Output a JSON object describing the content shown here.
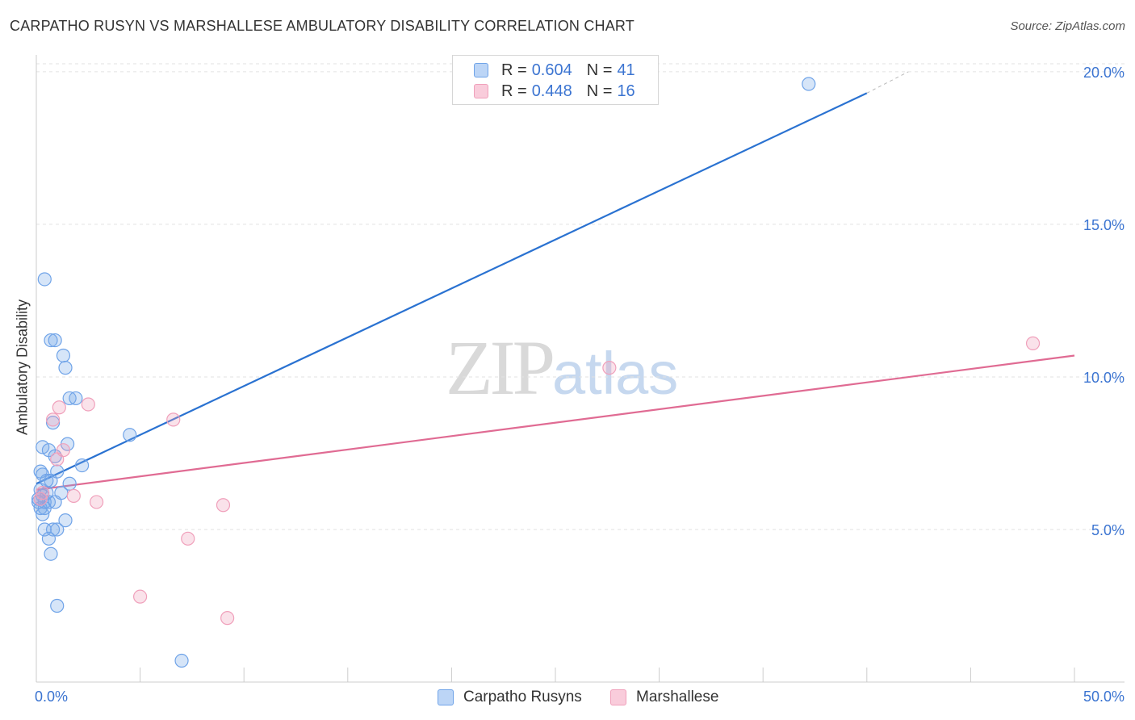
{
  "chart_data": {
    "type": "scatter",
    "title": "CARPATHO RUSYN VS MARSHALLESE AMBULATORY DISABILITY CORRELATION CHART",
    "source": "Source: ZipAtlas.com",
    "xlabel": "",
    "ylabel": "Ambulatory Disability",
    "xlim": [
      0,
      50
    ],
    "ylim": [
      0,
      20.5
    ],
    "x_tick_labels": [
      "0.0%",
      "50.0%"
    ],
    "y_ticks": [
      5,
      10,
      15,
      20
    ],
    "y_tick_labels": [
      "5.0%",
      "10.0%",
      "15.0%",
      "20.0%"
    ],
    "grid": true,
    "watermark": {
      "left": "ZIP",
      "right": "atlas"
    },
    "legend": {
      "entries": [
        {
          "r_label": "R = ",
          "r_value": "0.604",
          "n_label": "N = ",
          "n_value": "41"
        },
        {
          "r_label": "R = ",
          "r_value": "0.448",
          "n_label": "N = ",
          "n_value": "16"
        }
      ]
    },
    "series": [
      {
        "name": "Carpatho Rusyns",
        "color": "#6fa3e8",
        "line_color": "#2a72d1",
        "trend": {
          "x0": 0,
          "y0": 6.5,
          "x1": 40,
          "y1": 19.3,
          "dash_to_x": 42,
          "dash_to_y": 20.0
        },
        "points": [
          [
            0.4,
            13.2
          ],
          [
            0.7,
            11.2
          ],
          [
            0.9,
            11.2
          ],
          [
            1.3,
            10.7
          ],
          [
            1.4,
            10.3
          ],
          [
            1.6,
            9.3
          ],
          [
            1.9,
            9.3
          ],
          [
            0.8,
            8.5
          ],
          [
            4.5,
            8.1
          ],
          [
            0.3,
            7.7
          ],
          [
            1.5,
            7.8
          ],
          [
            0.6,
            7.6
          ],
          [
            0.9,
            7.4
          ],
          [
            2.2,
            7.1
          ],
          [
            0.2,
            6.9
          ],
          [
            0.3,
            6.8
          ],
          [
            1.0,
            6.9
          ],
          [
            0.7,
            6.6
          ],
          [
            1.6,
            6.5
          ],
          [
            0.2,
            6.3
          ],
          [
            0.5,
            6.2
          ],
          [
            0.3,
            6.1
          ],
          [
            1.2,
            6.2
          ],
          [
            0.1,
            5.9
          ],
          [
            0.4,
            5.9
          ],
          [
            0.6,
            5.9
          ],
          [
            0.9,
            5.9
          ],
          [
            0.2,
            5.7
          ],
          [
            0.4,
            5.7
          ],
          [
            0.3,
            5.5
          ],
          [
            1.4,
            5.3
          ],
          [
            0.4,
            5.0
          ],
          [
            0.8,
            5.0
          ],
          [
            1.0,
            5.0
          ],
          [
            0.6,
            4.7
          ],
          [
            0.7,
            4.2
          ],
          [
            1.0,
            2.5
          ],
          [
            7.0,
            0.7
          ],
          [
            37.2,
            19.6
          ],
          [
            0.1,
            6.0
          ],
          [
            0.5,
            6.6
          ]
        ]
      },
      {
        "name": "Marshallese",
        "color": "#f0a0bb",
        "line_color": "#e06b93",
        "trend": {
          "x0": 0,
          "y0": 6.3,
          "x1": 50,
          "y1": 10.7
        },
        "points": [
          [
            1.1,
            9.0
          ],
          [
            2.5,
            9.1
          ],
          [
            0.8,
            8.6
          ],
          [
            6.6,
            8.6
          ],
          [
            1.3,
            7.6
          ],
          [
            1.0,
            7.3
          ],
          [
            0.3,
            6.2
          ],
          [
            1.8,
            6.1
          ],
          [
            2.9,
            5.9
          ],
          [
            9.0,
            5.8
          ],
          [
            7.3,
            4.7
          ],
          [
            27.6,
            10.3
          ],
          [
            48.0,
            11.1
          ],
          [
            5.0,
            2.8
          ],
          [
            9.2,
            2.1
          ],
          [
            0.2,
            6.0
          ]
        ]
      }
    ]
  }
}
